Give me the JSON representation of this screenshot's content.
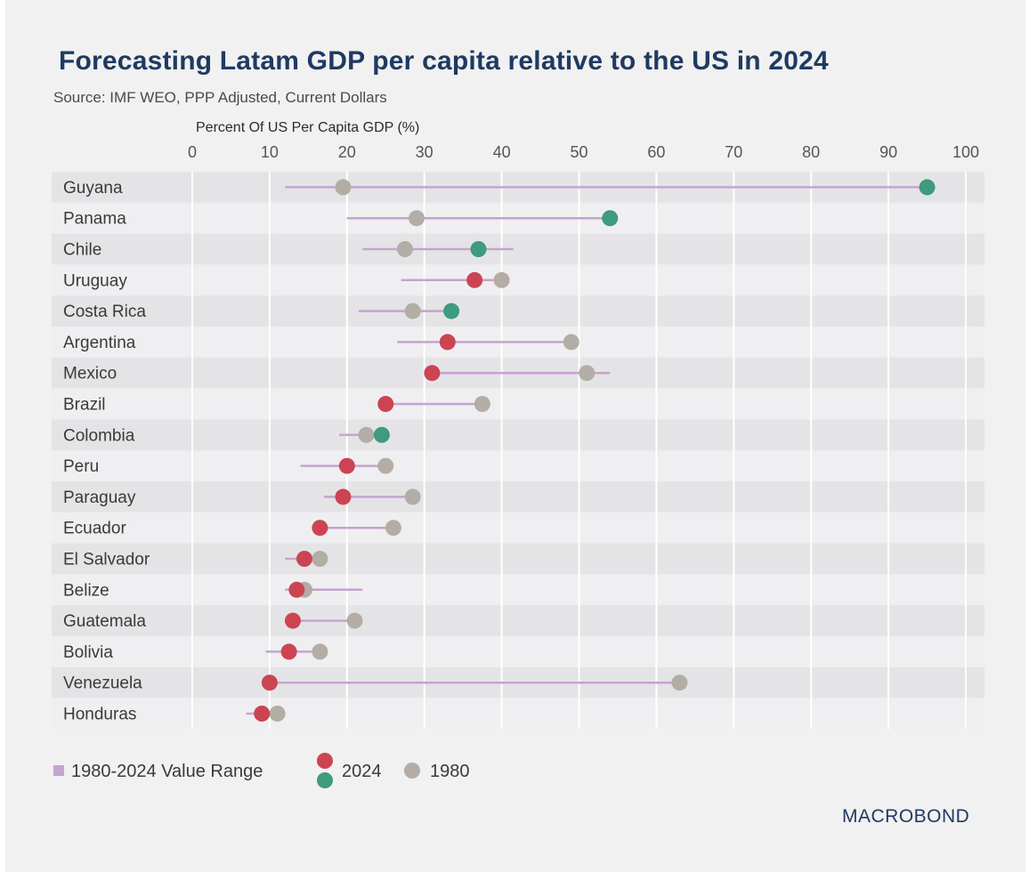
{
  "title": "Forecasting Latam GDP per capita relative to the US in 2024",
  "subtitle": "Source: IMF WEO, PPP Adjusted, Current Dollars",
  "brand": "MACROBOND",
  "colors": {
    "range": "#c6a3d0",
    "y2024_below": "#cc4452",
    "y2024_above": "#3f9a7e",
    "y1980": "#b3ada6",
    "title": "#1f3a60",
    "band_dark": "#e4e4e6",
    "band_light": "#efeff1"
  },
  "chart_data": {
    "type": "dot-range",
    "title": "Forecasting Latam GDP per capita relative to the US in 2024",
    "xlabel": "Percent Of US Per Capita GDP (%)",
    "xlim": [
      0,
      100
    ],
    "xticks": [
      0,
      10,
      20,
      30,
      40,
      50,
      60,
      70,
      80,
      90,
      100
    ],
    "legend": {
      "range_label": "1980-2024 Value Range",
      "label_2024": "2024",
      "label_1980": "1980",
      "position": "bottom-left"
    },
    "countries": [
      {
        "name": "Guyana",
        "min": 12,
        "max": 95,
        "v1980": 19.5,
        "v2024": 95,
        "above_1980": true
      },
      {
        "name": "Panama",
        "min": 20,
        "max": 54,
        "v1980": 29,
        "v2024": 54,
        "above_1980": true
      },
      {
        "name": "Chile",
        "min": 22,
        "max": 41.5,
        "v1980": 27.5,
        "v2024": 37,
        "above_1980": true
      },
      {
        "name": "Uruguay",
        "min": 27,
        "max": 40,
        "v1980": 40,
        "v2024": 36.5,
        "above_1980": false
      },
      {
        "name": "Costa Rica",
        "min": 21.5,
        "max": 33.5,
        "v1980": 28.5,
        "v2024": 33.5,
        "above_1980": true
      },
      {
        "name": "Argentina",
        "min": 26.5,
        "max": 49,
        "v1980": 49,
        "v2024": 33,
        "above_1980": false
      },
      {
        "name": "Mexico",
        "min": 31,
        "max": 54,
        "v1980": 51,
        "v2024": 31,
        "above_1980": false
      },
      {
        "name": "Brazil",
        "min": 25,
        "max": 37.5,
        "v1980": 37.5,
        "v2024": 25,
        "above_1980": false
      },
      {
        "name": "Colombia",
        "min": 19,
        "max": 24.5,
        "v1980": 22.5,
        "v2024": 24.5,
        "above_1980": true
      },
      {
        "name": "Peru",
        "min": 14,
        "max": 25,
        "v1980": 25,
        "v2024": 20,
        "above_1980": false
      },
      {
        "name": "Paraguay",
        "min": 17,
        "max": 28.5,
        "v1980": 28.5,
        "v2024": 19.5,
        "above_1980": false
      },
      {
        "name": "Ecuador",
        "min": 16.5,
        "max": 26,
        "v1980": 26,
        "v2024": 16.5,
        "above_1980": false
      },
      {
        "name": "El Salvador",
        "min": 12,
        "max": 16.5,
        "v1980": 16.5,
        "v2024": 14.5,
        "above_1980": false
      },
      {
        "name": "Belize",
        "min": 12,
        "max": 22,
        "v1980": 14.5,
        "v2024": 13.5,
        "above_1980": false
      },
      {
        "name": "Guatemala",
        "min": 13,
        "max": 21,
        "v1980": 21,
        "v2024": 13,
        "above_1980": false
      },
      {
        "name": "Bolivia",
        "min": 9.5,
        "max": 16.5,
        "v1980": 16.5,
        "v2024": 12.5,
        "above_1980": false
      },
      {
        "name": "Venezuela",
        "min": 9,
        "max": 63,
        "v1980": 63,
        "v2024": 10,
        "above_1980": false
      },
      {
        "name": "Honduras",
        "min": 7,
        "max": 11,
        "v1980": 11,
        "v2024": 9,
        "above_1980": false
      }
    ]
  }
}
